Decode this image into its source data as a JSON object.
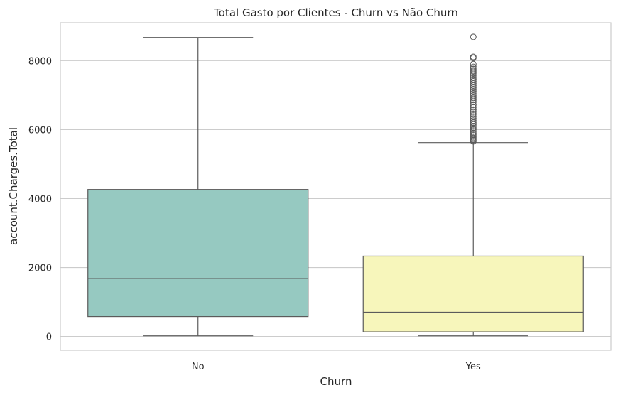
{
  "chart_data": {
    "type": "box",
    "title": "Total Gasto por Clientes - Churn vs Não Churn",
    "xlabel": "Churn",
    "ylabel": "account.Charges.Total",
    "ylim": [
      -400,
      9100
    ],
    "yticks": [
      0,
      2000,
      4000,
      6000,
      8000
    ],
    "grid": true,
    "categories": [
      "No",
      "Yes"
    ],
    "boxes": [
      {
        "category": "No",
        "color": "#96c9c1",
        "min": 19,
        "q1": 577,
        "median": 1683,
        "q3": 4264,
        "max": 8672,
        "fliers": []
      },
      {
        "category": "Yes",
        "color": "#f7f6bb",
        "min": 19,
        "q1": 134,
        "median": 704,
        "q3": 2331,
        "max": 5624,
        "fliers": [
          5660,
          5690,
          5720,
          5760,
          5800,
          5850,
          5900,
          5950,
          6000,
          6050,
          6100,
          6150,
          6200,
          6260,
          6320,
          6380,
          6450,
          6520,
          6580,
          6650,
          6720,
          6800,
          6860,
          6920,
          6980,
          7040,
          7100,
          7160,
          7220,
          7280,
          7340,
          7400,
          7460,
          7520,
          7580,
          7640,
          7700,
          7760,
          7820,
          7900,
          8080,
          8110,
          8690
        ]
      }
    ]
  }
}
